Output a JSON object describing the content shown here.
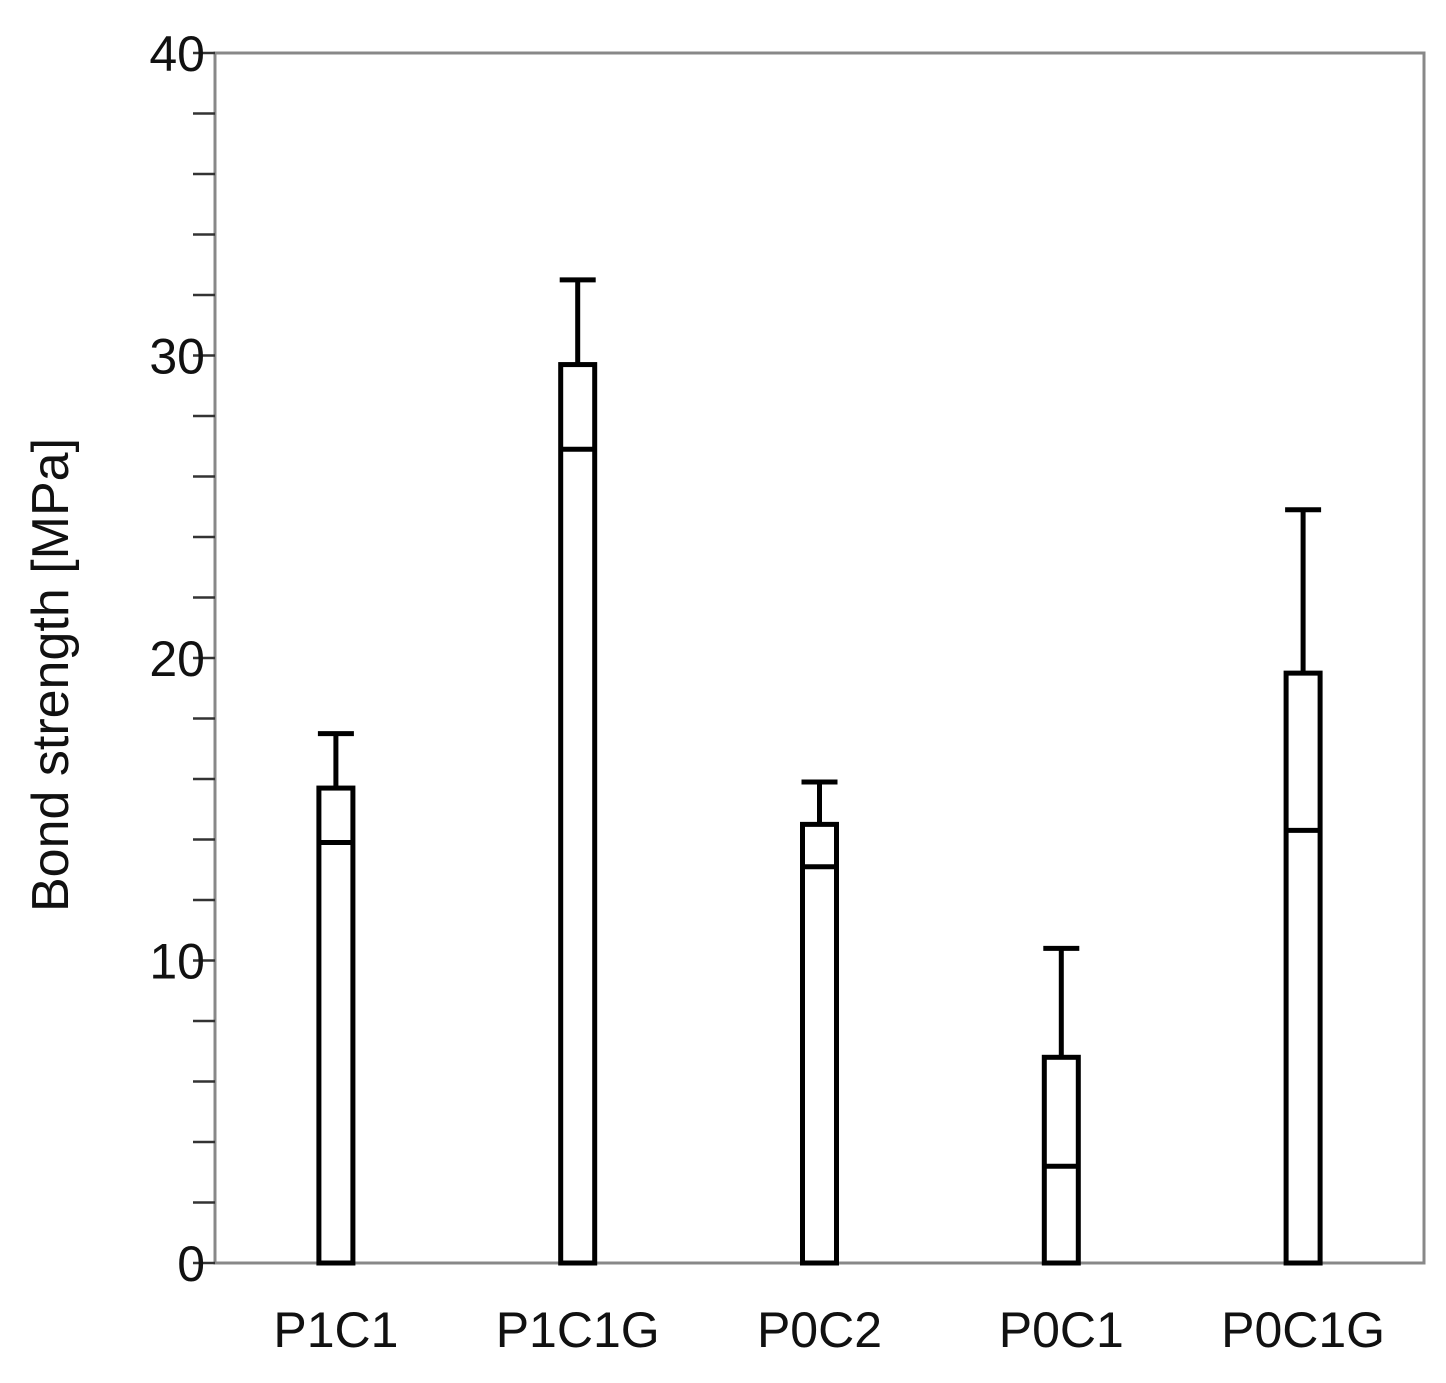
{
  "chart_data": {
    "type": "bar",
    "title": "",
    "xlabel": "",
    "ylabel": "Bond strength [MPa]",
    "ylim": [
      0,
      40
    ],
    "major_ticks": [
      0,
      10,
      20,
      30,
      40
    ],
    "minor_tick_step": 2,
    "grid": false,
    "legend": "none",
    "categories": [
      "P1C1",
      "P1C1G",
      "P0C2",
      "P0C1",
      "P0C1G"
    ],
    "values": [
      15.7,
      29.7,
      14.5,
      6.8,
      19.5
    ],
    "error_upper": [
      17.5,
      32.5,
      15.9,
      10.4,
      24.9
    ],
    "error_lower": [
      13.9,
      26.9,
      13.1,
      3.2,
      14.3
    ],
    "colors": {
      "bar_fill": "#ffffff",
      "bar_edge": "#000000",
      "axis": "#888888",
      "text": "#111111"
    }
  }
}
